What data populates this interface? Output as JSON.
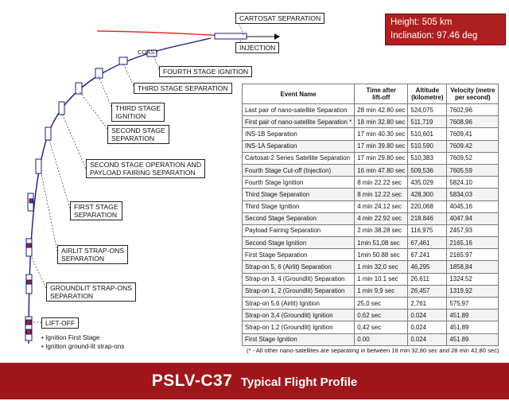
{
  "flight_info": {
    "height": "Height: 505 km",
    "inclination": "Inclination: 97.46 deg"
  },
  "labels": {
    "cartosat_separation": "CARTOSAT SEPARATION",
    "injection": "INJECTION",
    "coast": "COAST",
    "fourth_stage_ignition": "FOURTH STAGE IGNITION",
    "third_stage_separation": "THIRD STAGE SEPARATION",
    "third_stage_ignition": "THIRD STAGE\nIGNITION",
    "second_stage_separation": "SECOND STAGE\nSEPARATION",
    "second_stage_operation": "SECOND STAGE OPERATION AND\nPAYLOAD FAIRING SEPARATION",
    "first_stage_separation": "FIRST STAGE\nSEPARATION",
    "airlit_strapons_separation": "AIRLIT STRAP-ONS\nSEPARATION",
    "groundlit_strapons_separation": "GROUNDLIT STRAP-ONS\nSEPARATION",
    "liftoff": "LIFT-OFF"
  },
  "liftoff_notes": [
    "• Ignition First Stage",
    "• Ignition ground-lit strap-ons"
  ],
  "table": {
    "headers": {
      "event": "Event Name",
      "time": "Time after\nlift-off",
      "altitude": "Altitude\n(kilometre)",
      "velocity": "Velocity (metre\nper second)"
    },
    "rows": [
      [
        "Last pair of nano-satellite Separation",
        "28 min 42.80 sec",
        "524,075",
        "7602,96"
      ],
      [
        "First pair of nano-satellite Separation *",
        "18 min 32.80 sec",
        "511,719",
        "7608,96"
      ],
      [
        "INS-1B  Separation",
        "17 min 40.30 sec",
        "510,601",
        "7609,41"
      ],
      [
        "INS-1A Separation",
        "17 min 39.80 sec",
        "510.590",
        "7609.42"
      ],
      [
        "Cartosat-2 Series Satellite Separation",
        "17 min 29.80 sec",
        "510,383",
        "7609,52"
      ],
      [
        "Fourth Stage Cut-off (Injection)",
        "16 min 47.80 sec",
        "509,536",
        "7605,59"
      ],
      [
        "Fourth Stage Ignition",
        "8 min 22.22 sec",
        "435.029",
        "5824.10"
      ],
      [
        "Third Stage Separation",
        "8 min 12.22 sec",
        "428,300",
        "5834,03"
      ],
      [
        "Third Stage Ignition",
        "4 min 24,12 sec",
        "220,068",
        "4045,16"
      ],
      [
        "Second Stage Separation",
        "4 min 22.92 sec",
        "218.846",
        "4047.94"
      ],
      [
        "Payload Fairing Separation",
        "2 min 38.28 sec",
        "116,975",
        "2457,93"
      ],
      [
        "Second Stage Ignition",
        "1min 51,08 sec",
        "67,461",
        "2165,16"
      ],
      [
        "First Stage Separation",
        "1min 50.88 sec",
        "67.241",
        "2165.97"
      ],
      [
        "Strap-on 5, 6 (Airlit) Separation",
        "1 min 32,0 sec",
        "46,295",
        "1858,84"
      ],
      [
        "Strap-on 3, 4 (Groundlit) Separation",
        "1 min 10.1 sec",
        "26.611",
        "1324.52"
      ],
      [
        "Strap-on 1, 2 (Groundlit) Separation",
        "1 min 9,9 sec",
        "26,457",
        "1319,92"
      ],
      [
        "Strap-on 5,6 (Airlit) Ignition",
        "25,0 sec",
        "2,761",
        "575,97"
      ],
      [
        "Strap-on 3,4 (Groundlit) Ignition",
        "0.62 sec",
        "0.024",
        "451.89"
      ],
      [
        "Strap-on 1,2 (Groundlit) Ignition",
        "0,42 sec",
        "0,024",
        "451,89"
      ],
      [
        "First Stage Ignition",
        "0.00",
        "0.024",
        "451.89"
      ]
    ],
    "footnote": "(* - All other nano-satellites are separating in between 18 min 32,80 sec and 28 min 42,80 sec)"
  },
  "title": {
    "main": "PSLV-C37",
    "sub": "Typical Flight Profile"
  },
  "colors": {
    "banner": "#a0161a",
    "trajectory": "#1a1a8c",
    "orbit_arc": "#e02020"
  }
}
